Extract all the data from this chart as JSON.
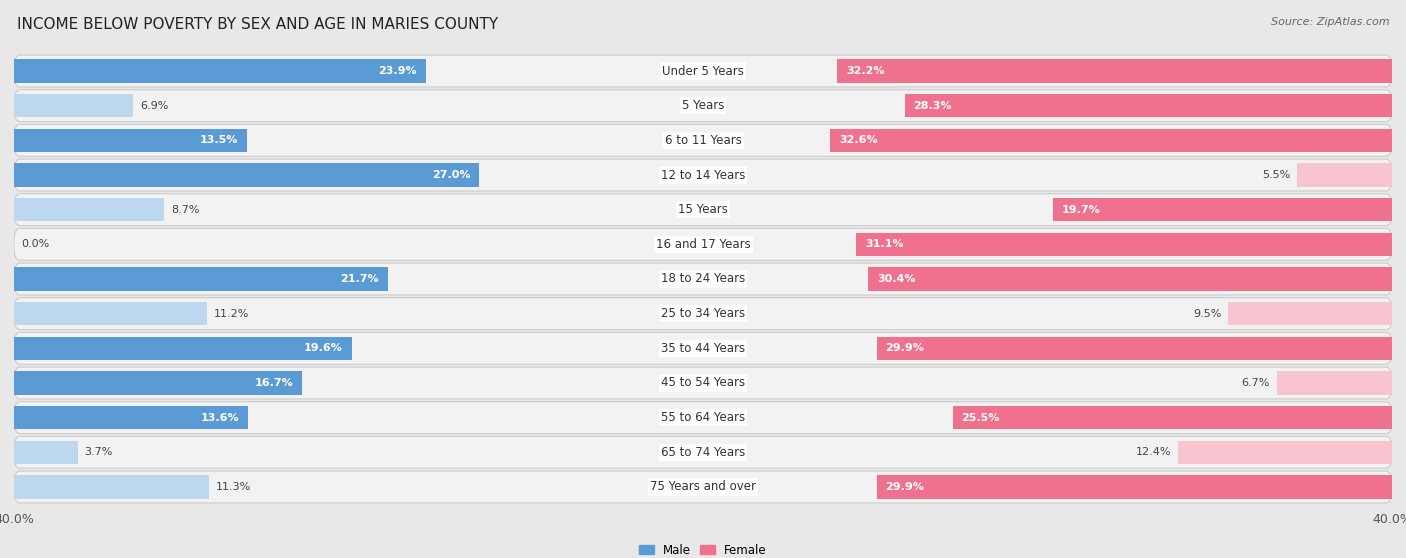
{
  "title": "INCOME BELOW POVERTY BY SEX AND AGE IN MARIES COUNTY",
  "source": "Source: ZipAtlas.com",
  "categories": [
    "Under 5 Years",
    "5 Years",
    "6 to 11 Years",
    "12 to 14 Years",
    "15 Years",
    "16 and 17 Years",
    "18 to 24 Years",
    "25 to 34 Years",
    "35 to 44 Years",
    "45 to 54 Years",
    "55 to 64 Years",
    "65 to 74 Years",
    "75 Years and over"
  ],
  "male": [
    23.9,
    6.9,
    13.5,
    27.0,
    8.7,
    0.0,
    21.7,
    11.2,
    19.6,
    16.7,
    13.6,
    3.7,
    11.3
  ],
  "female": [
    32.2,
    28.3,
    32.6,
    5.5,
    19.7,
    31.1,
    30.4,
    9.5,
    29.9,
    6.7,
    25.5,
    12.4,
    29.9
  ],
  "male_color_dark": "#5b9bd5",
  "male_color_light": "#bdd7ee",
  "female_color_dark": "#f0718e",
  "female_color_light": "#f8c4d0",
  "male_label": "Male",
  "female_label": "Female",
  "xlim": 40.0,
  "background_color": "#e8e8e8",
  "row_bg_color": "#f2f2f2",
  "row_border_color": "#cccccc",
  "title_fontsize": 11,
  "source_fontsize": 8,
  "label_fontsize": 8.5,
  "value_fontsize": 8,
  "tick_fontsize": 9
}
